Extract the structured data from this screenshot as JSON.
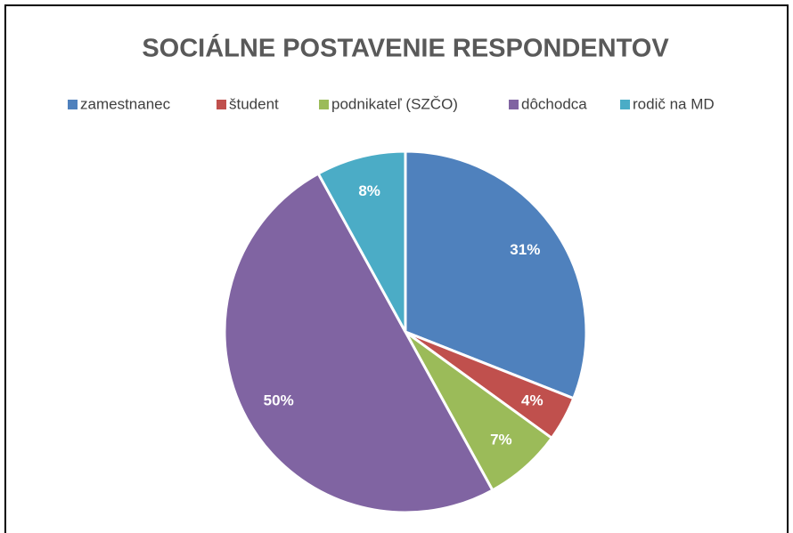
{
  "chart_data": {
    "type": "pie",
    "title": "SOCIÁLNE POSTAVENIE RESPONDENTOV",
    "categories": [
      "zamestnanec",
      "študent",
      "podnikateľ (SZČO)",
      "dôchodca",
      "rodič na MD"
    ],
    "values": [
      31,
      4,
      7,
      50,
      8
    ],
    "value_labels": [
      "31%",
      "4%",
      "7%",
      "50%",
      "8%"
    ],
    "colors": [
      "#4f81bd",
      "#c0504d",
      "#9bbb59",
      "#8064a2",
      "#4bacc6"
    ],
    "legend": "top"
  }
}
